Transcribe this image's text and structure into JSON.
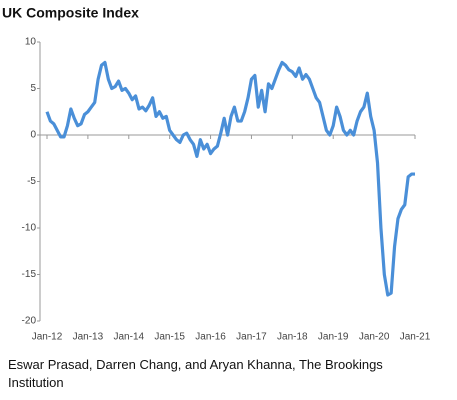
{
  "chart_data": {
    "type": "line",
    "title": "UK Composite Index",
    "source": "Eswar Prasad, Darren Chang, and Aryan Khanna, The Brookings Institution",
    "categories": [
      "Jan-12",
      null,
      null,
      null,
      null,
      null,
      null,
      null,
      null,
      null,
      null,
      null,
      "Jan-13",
      null,
      null,
      null,
      null,
      null,
      null,
      null,
      null,
      null,
      null,
      null,
      "Jan-14",
      null,
      null,
      null,
      null,
      null,
      null,
      null,
      null,
      null,
      null,
      null,
      "Jan-15",
      null,
      null,
      null,
      null,
      null,
      null,
      null,
      null,
      null,
      null,
      null,
      "Jan-16",
      null,
      null,
      null,
      null,
      null,
      null,
      null,
      null,
      null,
      null,
      null,
      "Jan-17",
      null,
      null,
      null,
      null,
      null,
      null,
      null,
      null,
      null,
      null,
      null,
      "Jan-18",
      null,
      null,
      null,
      null,
      null,
      null,
      null,
      null,
      null,
      null,
      null,
      "Jan-19",
      null,
      null,
      null,
      null,
      null,
      null,
      null,
      null,
      null,
      null,
      null,
      "Jan-20",
      null,
      null,
      null,
      null,
      null,
      null,
      null,
      null,
      null,
      null,
      null,
      "Jan-21"
    ],
    "series": [
      {
        "name": "UK Composite Index",
        "color": "#4a8fd8",
        "values": [
          2.5,
          1.5,
          1.2,
          0.5,
          -0.2,
          -0.2,
          1.0,
          2.8,
          1.8,
          1.0,
          1.2,
          2.2,
          2.5,
          3.0,
          3.5,
          6.0,
          7.5,
          7.8,
          6.0,
          5.0,
          5.2,
          5.8,
          4.8,
          5.0,
          4.5,
          3.8,
          4.2,
          2.8,
          3.0,
          2.6,
          3.2,
          4.0,
          2.0,
          2.5,
          1.8,
          2.0,
          0.5,
          0.0,
          -0.5,
          -0.8,
          0.0,
          0.2,
          -0.5,
          -1.0,
          -2.3,
          -0.5,
          -1.5,
          -1.0,
          -2.0,
          -1.5,
          -1.2,
          0.2,
          1.8,
          0.0,
          2.0,
          3.0,
          1.5,
          1.5,
          2.5,
          4.0,
          6.0,
          6.4,
          3.0,
          4.8,
          2.5,
          5.5,
          5.0,
          6.0,
          7.0,
          7.8,
          7.5,
          7.0,
          6.8,
          6.3,
          7.2,
          6.0,
          6.5,
          6.0,
          5.0,
          4.0,
          3.5,
          2.0,
          0.5,
          0.0,
          1.0,
          3.0,
          2.0,
          0.5,
          0.0,
          0.5,
          0.0,
          1.5,
          2.5,
          3.0,
          4.5,
          2.0,
          0.5,
          -3.0,
          -10,
          -15,
          -17.2,
          -17.0,
          -12,
          -9.0,
          -8.0,
          -7.5,
          -4.5,
          -4.2,
          -4.2
        ]
      }
    ],
    "ylim": [
      -20,
      10
    ],
    "yticks": [
      -20,
      -15,
      -10,
      -5,
      0,
      5,
      10
    ]
  }
}
